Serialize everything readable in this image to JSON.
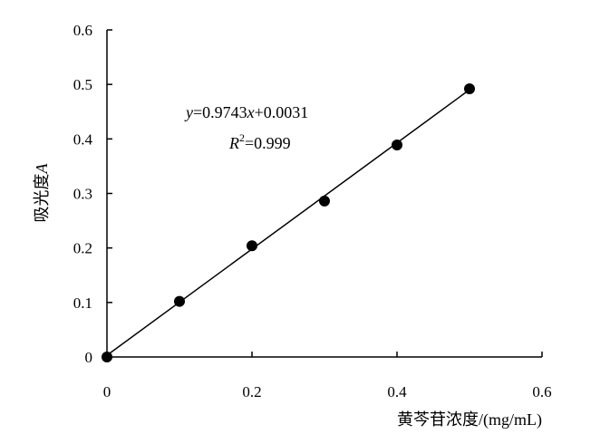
{
  "chart_data": {
    "type": "scatter",
    "title": "",
    "xlabel": "黄芩苷浓度/(mg/mL)",
    "ylabel_main": "吸光度",
    "ylabel_var": "A",
    "xlim": [
      0,
      0.6
    ],
    "ylim": [
      0,
      0.6
    ],
    "x_ticks": [
      "0",
      "0.2",
      "0.4",
      "0.6"
    ],
    "x_tick_values": [
      0,
      0.2,
      0.4,
      0.6
    ],
    "y_ticks": [
      "0",
      "0.1",
      "0.2",
      "0.3",
      "0.4",
      "0.5",
      "0.6"
    ],
    "y_tick_values": [
      0,
      0.1,
      0.2,
      0.3,
      0.4,
      0.5,
      0.6
    ],
    "grid": false,
    "series": [
      {
        "x": [
          0,
          0.1,
          0.2,
          0.3,
          0.4,
          0.5
        ],
        "y": [
          0.0,
          0.102,
          0.204,
          0.286,
          0.389,
          0.492
        ]
      }
    ],
    "trendline": {
      "slope": 0.9743,
      "intercept": 0.0031,
      "x_range": [
        0,
        0.5
      ]
    },
    "annotation": {
      "equation": {
        "y": "y",
        "eq1": "=0.9743",
        "x": "x",
        "eq2": "+0.0031"
      },
      "r2": {
        "R": "R",
        "sup": "2",
        "val": "=0.999"
      }
    },
    "colors": {
      "axis": "#000000",
      "marker": "#000000",
      "line": "#000000"
    }
  }
}
